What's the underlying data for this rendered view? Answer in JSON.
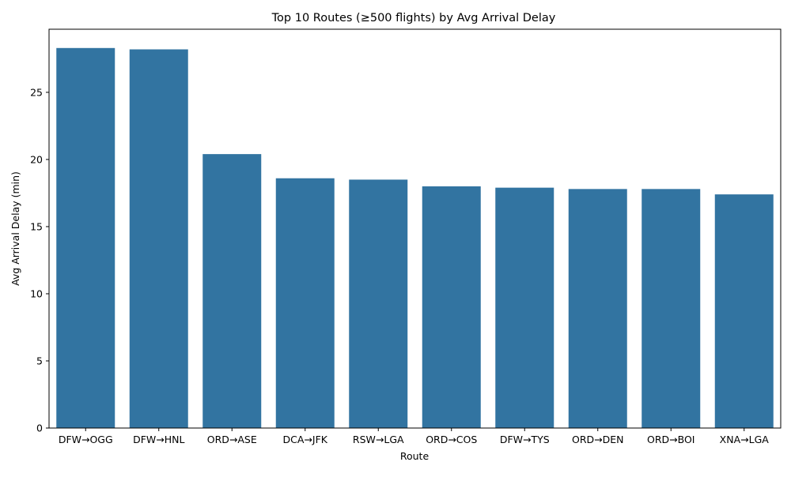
{
  "chart_data": {
    "type": "bar",
    "title": "Top 10 Routes (≥500 flights) by Avg Arrival Delay",
    "xlabel": "Route",
    "ylabel": "Avg Arrival Delay (min)",
    "categories": [
      "DFW→OGG",
      "DFW→HNL",
      "ORD→ASE",
      "DCA→JFK",
      "RSW→LGA",
      "ORD→COS",
      "DFW→TYS",
      "ORD→DEN",
      "ORD→BOI",
      "XNA→LGA"
    ],
    "values": [
      28.3,
      28.2,
      20.4,
      18.6,
      18.5,
      18.0,
      17.9,
      17.8,
      17.8,
      17.4
    ],
    "ylim": [
      0,
      29.7
    ],
    "yticks": [
      0,
      5,
      10,
      15,
      20,
      25
    ],
    "grid": false,
    "bar_color": "#3274a1"
  }
}
